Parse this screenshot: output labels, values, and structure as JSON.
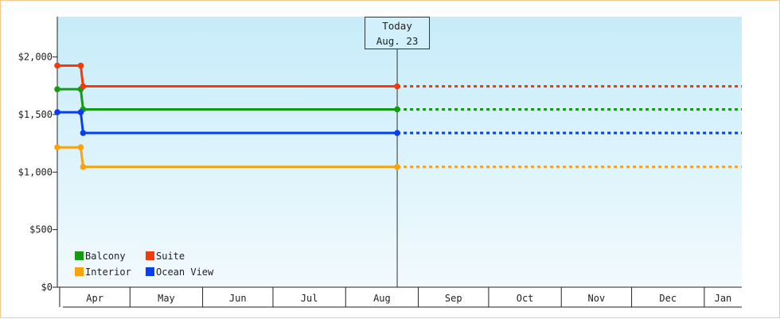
{
  "chart_data": {
    "type": "line",
    "step": true,
    "y_format": "currency",
    "ylim": [
      0,
      2350
    ],
    "yticks": [
      0,
      500,
      1000,
      1500,
      2000
    ],
    "ytick_labels": [
      "$0",
      "$500",
      "$1,000",
      "$1,500",
      "$2,000"
    ],
    "x_range": [
      "2024-03-31",
      "2025-01-17"
    ],
    "x_categories": [
      "Apr",
      "May",
      "Jun",
      "Jul",
      "Aug",
      "Sep",
      "Oct",
      "Nov",
      "Dec",
      "Jan"
    ],
    "month_starts": [
      "2024-04-01",
      "2024-05-01",
      "2024-06-01",
      "2024-07-01",
      "2024-08-01",
      "2024-09-01",
      "2024-10-01",
      "2024-11-01",
      "2024-12-01",
      "2025-01-01",
      "2025-02-01"
    ],
    "today_marker": {
      "line1": "Today",
      "line2": "Aug. 23",
      "date": "2024-08-23"
    },
    "projection": {
      "style": "dashed",
      "until": "2025-01-17"
    },
    "grid": false,
    "legend": {
      "position": "bottom-left",
      "columns": 2
    },
    "series": [
      {
        "name": "Balcony",
        "color": "#159a15",
        "points": [
          [
            "2024-03-31",
            1720
          ],
          [
            "2024-04-10",
            1720
          ],
          [
            "2024-04-11",
            1545
          ],
          [
            "2024-08-23",
            1545
          ]
        ]
      },
      {
        "name": "Suite",
        "color": "#f23a0a",
        "points": [
          [
            "2024-03-31",
            1925
          ],
          [
            "2024-04-10",
            1925
          ],
          [
            "2024-04-11",
            1745
          ],
          [
            "2024-08-23",
            1745
          ]
        ]
      },
      {
        "name": "Interior",
        "color": "#f5a30f",
        "points": [
          [
            "2024-03-31",
            1215
          ],
          [
            "2024-04-10",
            1215
          ],
          [
            "2024-04-11",
            1045
          ],
          [
            "2024-08-23",
            1045
          ]
        ]
      },
      {
        "name": "Ocean View",
        "color": "#0a3cf0",
        "points": [
          [
            "2024-03-31",
            1520
          ],
          [
            "2024-04-10",
            1520
          ],
          [
            "2024-04-11",
            1340
          ],
          [
            "2024-08-23",
            1340
          ]
        ]
      }
    ],
    "plot_background": {
      "top": "#c6ecf9",
      "bottom": "#f2fafe"
    }
  }
}
